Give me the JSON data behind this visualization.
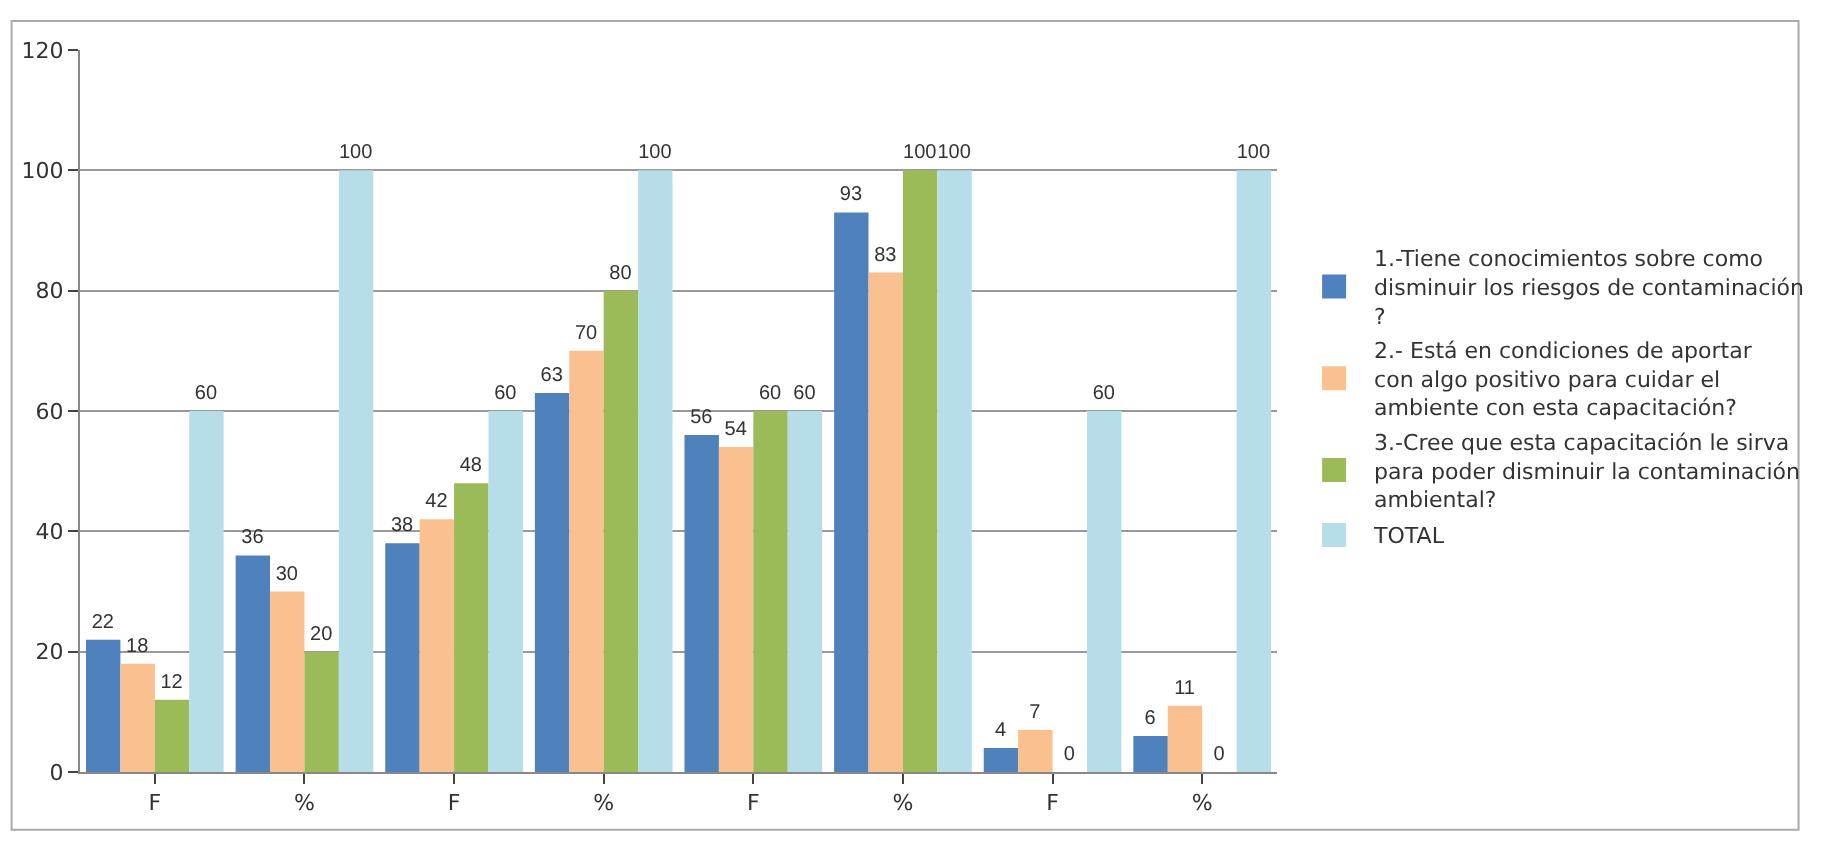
{
  "chart_data": {
    "type": "bar",
    "categories": [
      "F",
      "%",
      "F",
      "%",
      "F",
      "%",
      "F",
      "%"
    ],
    "series": [
      {
        "name": "1.-Tiene conocimientos sobre como disminuir los riesgos de contaminación ?",
        "color": "#4f81bd",
        "values": [
          22,
          36,
          38,
          63,
          56,
          93,
          4,
          6
        ]
      },
      {
        "name": "2.- Está en condiciones de aportar  con algo positivo para cuidar el ambiente con esta capacitación?",
        "color": "#fac090",
        "values": [
          18,
          30,
          42,
          70,
          54,
          83,
          7,
          11
        ]
      },
      {
        "name": "3.-Cree que esta capacitación le sirva para poder disminuir la contaminación ambiental?",
        "color": "#9bbb59",
        "values": [
          12,
          20,
          48,
          80,
          60,
          100,
          0,
          0
        ]
      },
      {
        "name": "TOTAL",
        "color": "#b7dee8",
        "values": [
          60,
          100,
          60,
          100,
          60,
          100,
          60,
          100
        ]
      }
    ],
    "ylim": [
      0,
      120
    ],
    "yticks": [
      0,
      20,
      40,
      60,
      80,
      100,
      120
    ],
    "grid": "y",
    "legend": "right",
    "data_labels": true
  }
}
